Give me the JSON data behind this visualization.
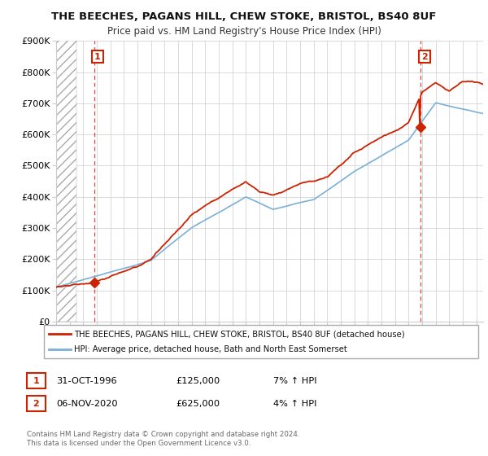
{
  "title": "THE BEECHES, PAGANS HILL, CHEW STOKE, BRISTOL, BS40 8UF",
  "subtitle": "Price paid vs. HM Land Registry's House Price Index (HPI)",
  "property_label": "THE BEECHES, PAGANS HILL, CHEW STOKE, BRISTOL, BS40 8UF (detached house)",
  "hpi_label": "HPI: Average price, detached house, Bath and North East Somerset",
  "property_color": "#cc2200",
  "hpi_color": "#7ab0d8",
  "annotation1_date": "31-OCT-1996",
  "annotation1_price": "£125,000",
  "annotation1_hpi": "7% ↑ HPI",
  "annotation1_year": 1996.83,
  "annotation1_value": 125000,
  "annotation2_date": "06-NOV-2020",
  "annotation2_price": "£625,000",
  "annotation2_hpi": "4% ↑ HPI",
  "annotation2_year": 2020.85,
  "annotation2_value": 625000,
  "xmin": 1994,
  "xmax": 2025.5,
  "ymin": 0,
  "ymax": 900000,
  "yticks": [
    0,
    100000,
    200000,
    300000,
    400000,
    500000,
    600000,
    700000,
    800000,
    900000
  ],
  "ytick_labels": [
    "£0",
    "£100K",
    "£200K",
    "£300K",
    "£400K",
    "£500K",
    "£600K",
    "£700K",
    "£800K",
    "£900K"
  ],
  "footer": "Contains HM Land Registry data © Crown copyright and database right 2024.\nThis data is licensed under the Open Government Licence v3.0.",
  "background_color": "#ffffff",
  "hatched_region_end": 1995.5
}
